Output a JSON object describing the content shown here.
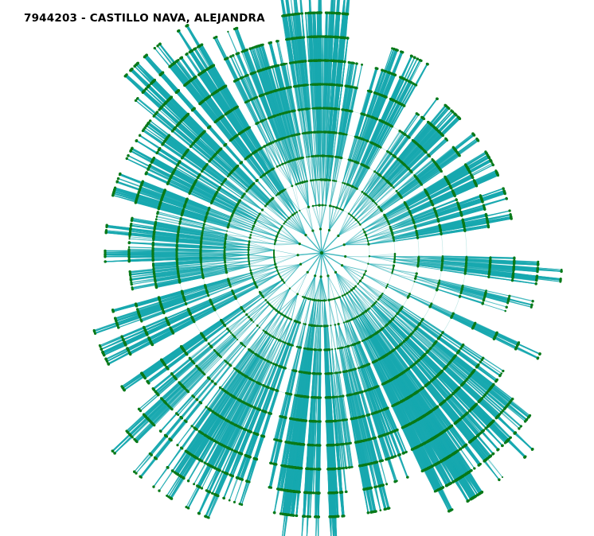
{
  "title": "7944203 - CASTILLO NAVA, ALEJANDRA",
  "colors": {
    "link": "#1aa9b0",
    "ring": "#9fdcd8",
    "node": "#0a7a1a"
  },
  "diagram": {
    "type": "radial-tree"
  }
}
